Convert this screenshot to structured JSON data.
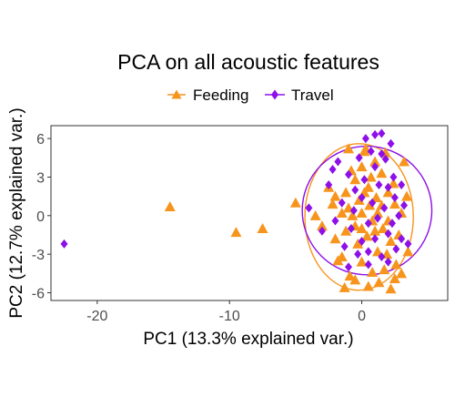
{
  "chart_data": {
    "type": "scatter",
    "title": "PCA on all acoustic features",
    "xlabel": "PC1 (13.3% explained var.)",
    "ylabel": "PC2 (12.7% explained var.)",
    "xlim": [
      -23.5,
      6.5
    ],
    "ylim": [
      -6.6,
      7.0
    ],
    "xticks": [
      -20,
      -10,
      0
    ],
    "yticks": [
      -6,
      -3,
      0,
      3,
      6
    ],
    "xtick_labels": [
      "-20",
      "-10",
      "0"
    ],
    "ytick_labels": [
      "-6",
      "-3",
      "0",
      "3",
      "6"
    ],
    "grid": false,
    "legend_position": "top",
    "series": [
      {
        "name": "Feeding",
        "marker": "triangle",
        "color": "#F7941D",
        "points": [
          [
            -14.5,
            0.7
          ],
          [
            -9.5,
            -1.3
          ],
          [
            -7.5,
            -1.0
          ],
          [
            -5.0,
            1.0
          ],
          [
            -3.5,
            0.0
          ],
          [
            -3.0,
            -0.8
          ],
          [
            -2.5,
            2.2
          ],
          [
            -2.2,
            0.9
          ],
          [
            -2.0,
            1.5
          ],
          [
            -2.0,
            -1.8
          ],
          [
            -1.8,
            -3.5
          ],
          [
            -1.5,
            0.2
          ],
          [
            -1.5,
            -3.2
          ],
          [
            -1.2,
            1.8
          ],
          [
            -1.2,
            -1.2
          ],
          [
            -1.0,
            0.6
          ],
          [
            -0.9,
            -4.7
          ],
          [
            -0.8,
            3.5
          ],
          [
            -0.7,
            0.0
          ],
          [
            -0.5,
            -0.8
          ],
          [
            -0.5,
            -5.0
          ],
          [
            -0.5,
            2.8
          ],
          [
            -0.3,
            -2.2
          ],
          [
            -0.2,
            1.2
          ],
          [
            0.0,
            3.8
          ],
          [
            0.0,
            0.2
          ],
          [
            0.0,
            -1.0
          ],
          [
            0.0,
            -3.6
          ],
          [
            0.2,
            1.8
          ],
          [
            0.3,
            5.2
          ],
          [
            0.4,
            -1.6
          ],
          [
            0.5,
            -5.5
          ],
          [
            0.5,
            2.2
          ],
          [
            0.6,
            0.8
          ],
          [
            0.7,
            3.0
          ],
          [
            0.8,
            -0.4
          ],
          [
            0.8,
            -4.4
          ],
          [
            1.0,
            4.2
          ],
          [
            1.0,
            -1.2
          ],
          [
            1.1,
            1.4
          ],
          [
            1.2,
            0.2
          ],
          [
            1.2,
            -2.8
          ],
          [
            1.3,
            -5.2
          ],
          [
            1.5,
            3.3
          ],
          [
            1.5,
            0.8
          ],
          [
            1.6,
            -1.0
          ],
          [
            1.7,
            -4.2
          ],
          [
            1.8,
            4.9
          ],
          [
            1.9,
            -3.0
          ],
          [
            2.0,
            1.8
          ],
          [
            2.0,
            -0.4
          ],
          [
            2.2,
            -5.7
          ],
          [
            2.2,
            -2.0
          ],
          [
            2.4,
            2.5
          ],
          [
            2.5,
            0.9
          ],
          [
            2.6,
            -3.8
          ],
          [
            2.8,
            -1.5
          ],
          [
            3.0,
            0.2
          ],
          [
            3.0,
            -4.5
          ],
          [
            3.2,
            4.2
          ],
          [
            3.4,
            1.5
          ],
          [
            3.5,
            -2.8
          ],
          [
            -1.0,
            5.2
          ],
          [
            0.2,
            5.0
          ],
          [
            -1.3,
            -5.6
          ],
          [
            2.5,
            -4.9
          ]
        ]
      },
      {
        "name": "Travel",
        "marker": "diamond",
        "color": "#8E10E8",
        "points": [
          [
            -22.5,
            -2.2
          ],
          [
            -4.0,
            0.6
          ],
          [
            -2.5,
            2.4
          ],
          [
            -2.0,
            -0.4
          ],
          [
            -1.8,
            4.2
          ],
          [
            -1.5,
            1.0
          ],
          [
            -1.3,
            -2.4
          ],
          [
            -1.0,
            3.2
          ],
          [
            -0.8,
            -1.0
          ],
          [
            -0.6,
            0.4
          ],
          [
            -0.5,
            2.0
          ],
          [
            -0.3,
            -3.0
          ],
          [
            -0.2,
            4.5
          ],
          [
            0.0,
            1.4
          ],
          [
            0.0,
            -2.0
          ],
          [
            0.2,
            2.8
          ],
          [
            0.3,
            6.0
          ],
          [
            0.5,
            -0.6
          ],
          [
            0.5,
            -2.8
          ],
          [
            0.7,
            5.0
          ],
          [
            0.8,
            1.0
          ],
          [
            1.0,
            3.8
          ],
          [
            1.0,
            -1.8
          ],
          [
            1.0,
            6.3
          ],
          [
            1.2,
            -0.2
          ],
          [
            1.3,
            2.4
          ],
          [
            1.5,
            6.4
          ],
          [
            1.5,
            -3.2
          ],
          [
            1.7,
            0.6
          ],
          [
            1.8,
            4.4
          ],
          [
            2.0,
            -1.4
          ],
          [
            2.0,
            2.2
          ],
          [
            2.2,
            5.6
          ],
          [
            2.3,
            -0.6
          ],
          [
            2.4,
            3.0
          ],
          [
            2.5,
            1.4
          ],
          [
            2.6,
            -2.6
          ],
          [
            2.8,
            0.0
          ],
          [
            3.0,
            2.4
          ],
          [
            3.0,
            -1.8
          ],
          [
            3.2,
            0.8
          ],
          [
            3.5,
            -2.2
          ],
          [
            -1.0,
            -4.0
          ],
          [
            0.5,
            -3.8
          ],
          [
            2.0,
            -3.6
          ],
          [
            -2.2,
            3.6
          ],
          [
            -3.0,
            -1.2
          ],
          [
            1.5,
            4.8
          ]
        ]
      }
    ],
    "ellipses": [
      {
        "series": "Feeding",
        "color": "#F7941D",
        "cx": -0.2,
        "cy": -0.1,
        "rx": 4.1,
        "ry": 5.7
      },
      {
        "series": "Travel",
        "color": "#8E10E8",
        "cx": 0.4,
        "cy": 0.4,
        "rx": 4.9,
        "ry": 5.0
      }
    ]
  }
}
